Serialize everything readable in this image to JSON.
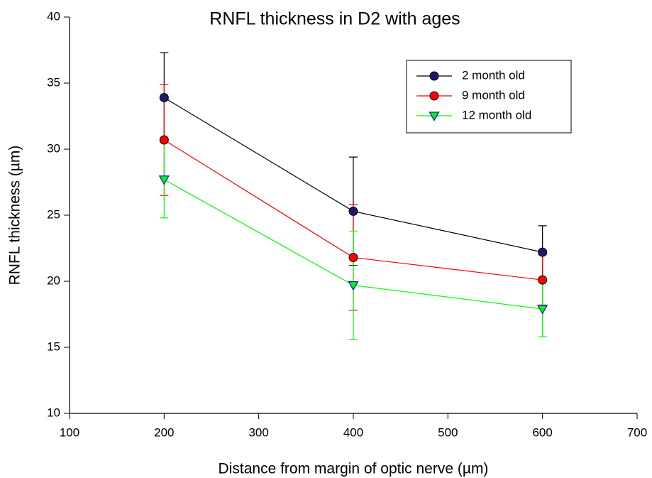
{
  "chart_data": {
    "type": "line",
    "title": "RNFL thickness in D2 with ages",
    "x_label": "Distance from margin of optic nerve (µm)",
    "y_label": "RNFL thickness (µm)",
    "x": [
      200,
      400,
      600
    ],
    "series": [
      {
        "name": "2 month old",
        "color": "#000000",
        "marker_color": "#1c1c6e",
        "marker": "circle",
        "values": [
          33.9,
          25.3,
          22.2
        ],
        "errors": [
          3.4,
          4.1,
          2.0
        ]
      },
      {
        "name": "9 month old",
        "color": "#ff0000",
        "marker_color": "#ff0000",
        "marker": "circle",
        "values": [
          30.7,
          21.8,
          20.1
        ],
        "errors": [
          4.2,
          4.0,
          1.9
        ]
      },
      {
        "name": "12 month old",
        "color": "#00ff00",
        "marker_color": "#00ff00",
        "marker": "triangle",
        "values": [
          27.7,
          19.7,
          17.9
        ],
        "errors": [
          2.9,
          4.1,
          2.1
        ]
      }
    ],
    "xlim": [
      100,
      700
    ],
    "xticks": [
      100,
      200,
      300,
      400,
      500,
      600,
      700
    ],
    "ylim": [
      10,
      40
    ],
    "yticks": [
      10,
      15,
      20,
      25,
      30,
      35,
      40
    ],
    "grid": false,
    "legend": "upper right"
  }
}
